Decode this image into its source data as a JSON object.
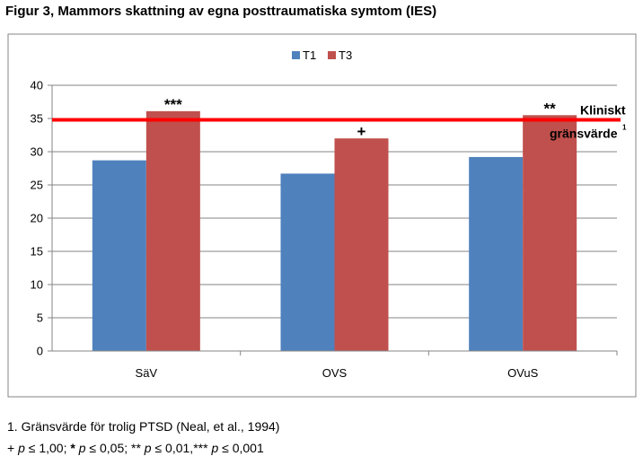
{
  "figure_title": "Figur 3, Mammors skattning av egna posttraumatiska symtom (IES)",
  "chart_data": {
    "type": "bar",
    "title": "Figur 3, Mammors skattning av egna posttraumatiska symtom (IES)",
    "categories": [
      "SäV",
      "OVS",
      "OVuS"
    ],
    "series": [
      {
        "name": "T1",
        "values": [
          28.7,
          26.7,
          29.2
        ],
        "color": "#4F81BD"
      },
      {
        "name": "T3",
        "values": [
          36.1,
          32.0,
          35.5
        ],
        "color": "#C0504D"
      }
    ],
    "ylim": [
      0,
      40
    ],
    "yticks": [
      0,
      5,
      10,
      15,
      20,
      25,
      30,
      35,
      40
    ],
    "ytick_labels": [
      "0",
      "5",
      "10",
      "15",
      "20",
      "25",
      "30",
      "35",
      "40"
    ],
    "xlabel": "",
    "ylabel": "",
    "grid": true,
    "legend_position": "top-center",
    "reference_line": {
      "value": 34.8,
      "label_line1": "Kliniskt",
      "label_line2": "gränsvärde",
      "superscript": "1",
      "color": "#FF0000"
    },
    "significance_marks": [
      {
        "category": "SäV",
        "series": "T3",
        "mark": "***"
      },
      {
        "category": "OVS",
        "series": "T3",
        "mark": "+"
      },
      {
        "category": "OVuS",
        "series": "T3",
        "mark": "**"
      }
    ]
  },
  "footnotes": {
    "line1": "1. Gränsvärde för trolig PTSD (Neal, et al., 1994)",
    "line2": {
      "plus": "+",
      "p1": "p",
      "t1": " ≤ 1,00; ",
      "star1": "*",
      "p2": "p",
      "t2": " ≤ 0,05; ** ",
      "p3": "p",
      "t3": " ≤ 0,01,*** ",
      "p4": "p",
      "t4": " ≤ 0,001"
    }
  }
}
